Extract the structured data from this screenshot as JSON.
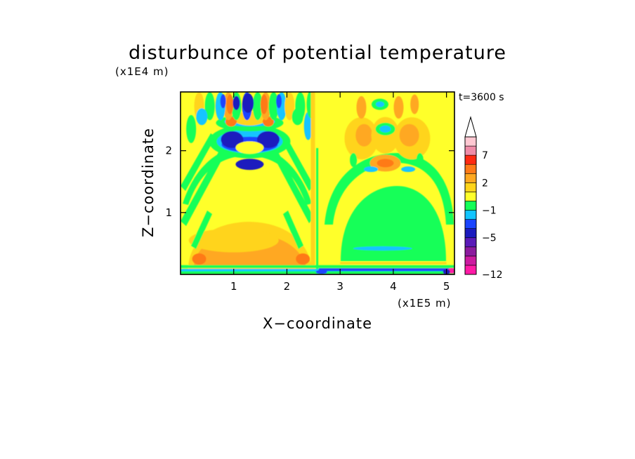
{
  "chart_data": {
    "type": "heatmap",
    "subtype": "filled-contour",
    "title": "disturbunce of potential temperature",
    "xlabel": "X−coordinate",
    "ylabel": "Z−coordinate",
    "x_unit": "(x1E5 m)",
    "y_unit": "(x1E4 m)",
    "time_label": "t=3600 s",
    "xlim": [
      0,
      5.15
    ],
    "ylim": [
      0,
      2.95
    ],
    "x_ticks": [
      1,
      2,
      3,
      4,
      5
    ],
    "y_ticks": [
      1,
      2
    ],
    "colorbar": {
      "extend": "max",
      "levels": [
        -12,
        -10,
        -8,
        -7,
        -5,
        -4,
        -3,
        -1,
        0,
        1,
        2,
        3,
        5,
        7,
        9,
        11
      ],
      "labeled_levels": [
        "7",
        "2",
        "−1",
        "−5",
        "−12"
      ],
      "labeled_values": [
        7,
        2,
        -1,
        -5,
        -12
      ],
      "colors": [
        "#ff1aa6",
        "#cc1aa0",
        "#8c1a9e",
        "#5a1ab8",
        "#1a1abe",
        "#1a44ff",
        "#12c4ff",
        "#14ff58",
        "#ffff2a",
        "#ffd41a",
        "#ffa820",
        "#ff7a18",
        "#ff2a12",
        "#f08ca8",
        "#ffc8d2"
      ]
    },
    "features": [
      {
        "name": "lower warm arch",
        "x": 1.0,
        "z": 0.4,
        "value": 2.5
      },
      {
        "name": "upper cold cores",
        "x": 1.3,
        "z": 2.75,
        "value": -5
      },
      {
        "name": "mid cold lobes",
        "x": 1.3,
        "z": 2.1,
        "value": -5
      },
      {
        "name": "right cold arc",
        "x": 3.8,
        "z": 0.9,
        "value": -0.5
      },
      {
        "name": "right warm core",
        "x": 3.8,
        "z": 1.75,
        "value": 3.5
      },
      {
        "name": "right cold cell",
        "x": 3.85,
        "z": 2.35,
        "value": -2
      }
    ]
  }
}
